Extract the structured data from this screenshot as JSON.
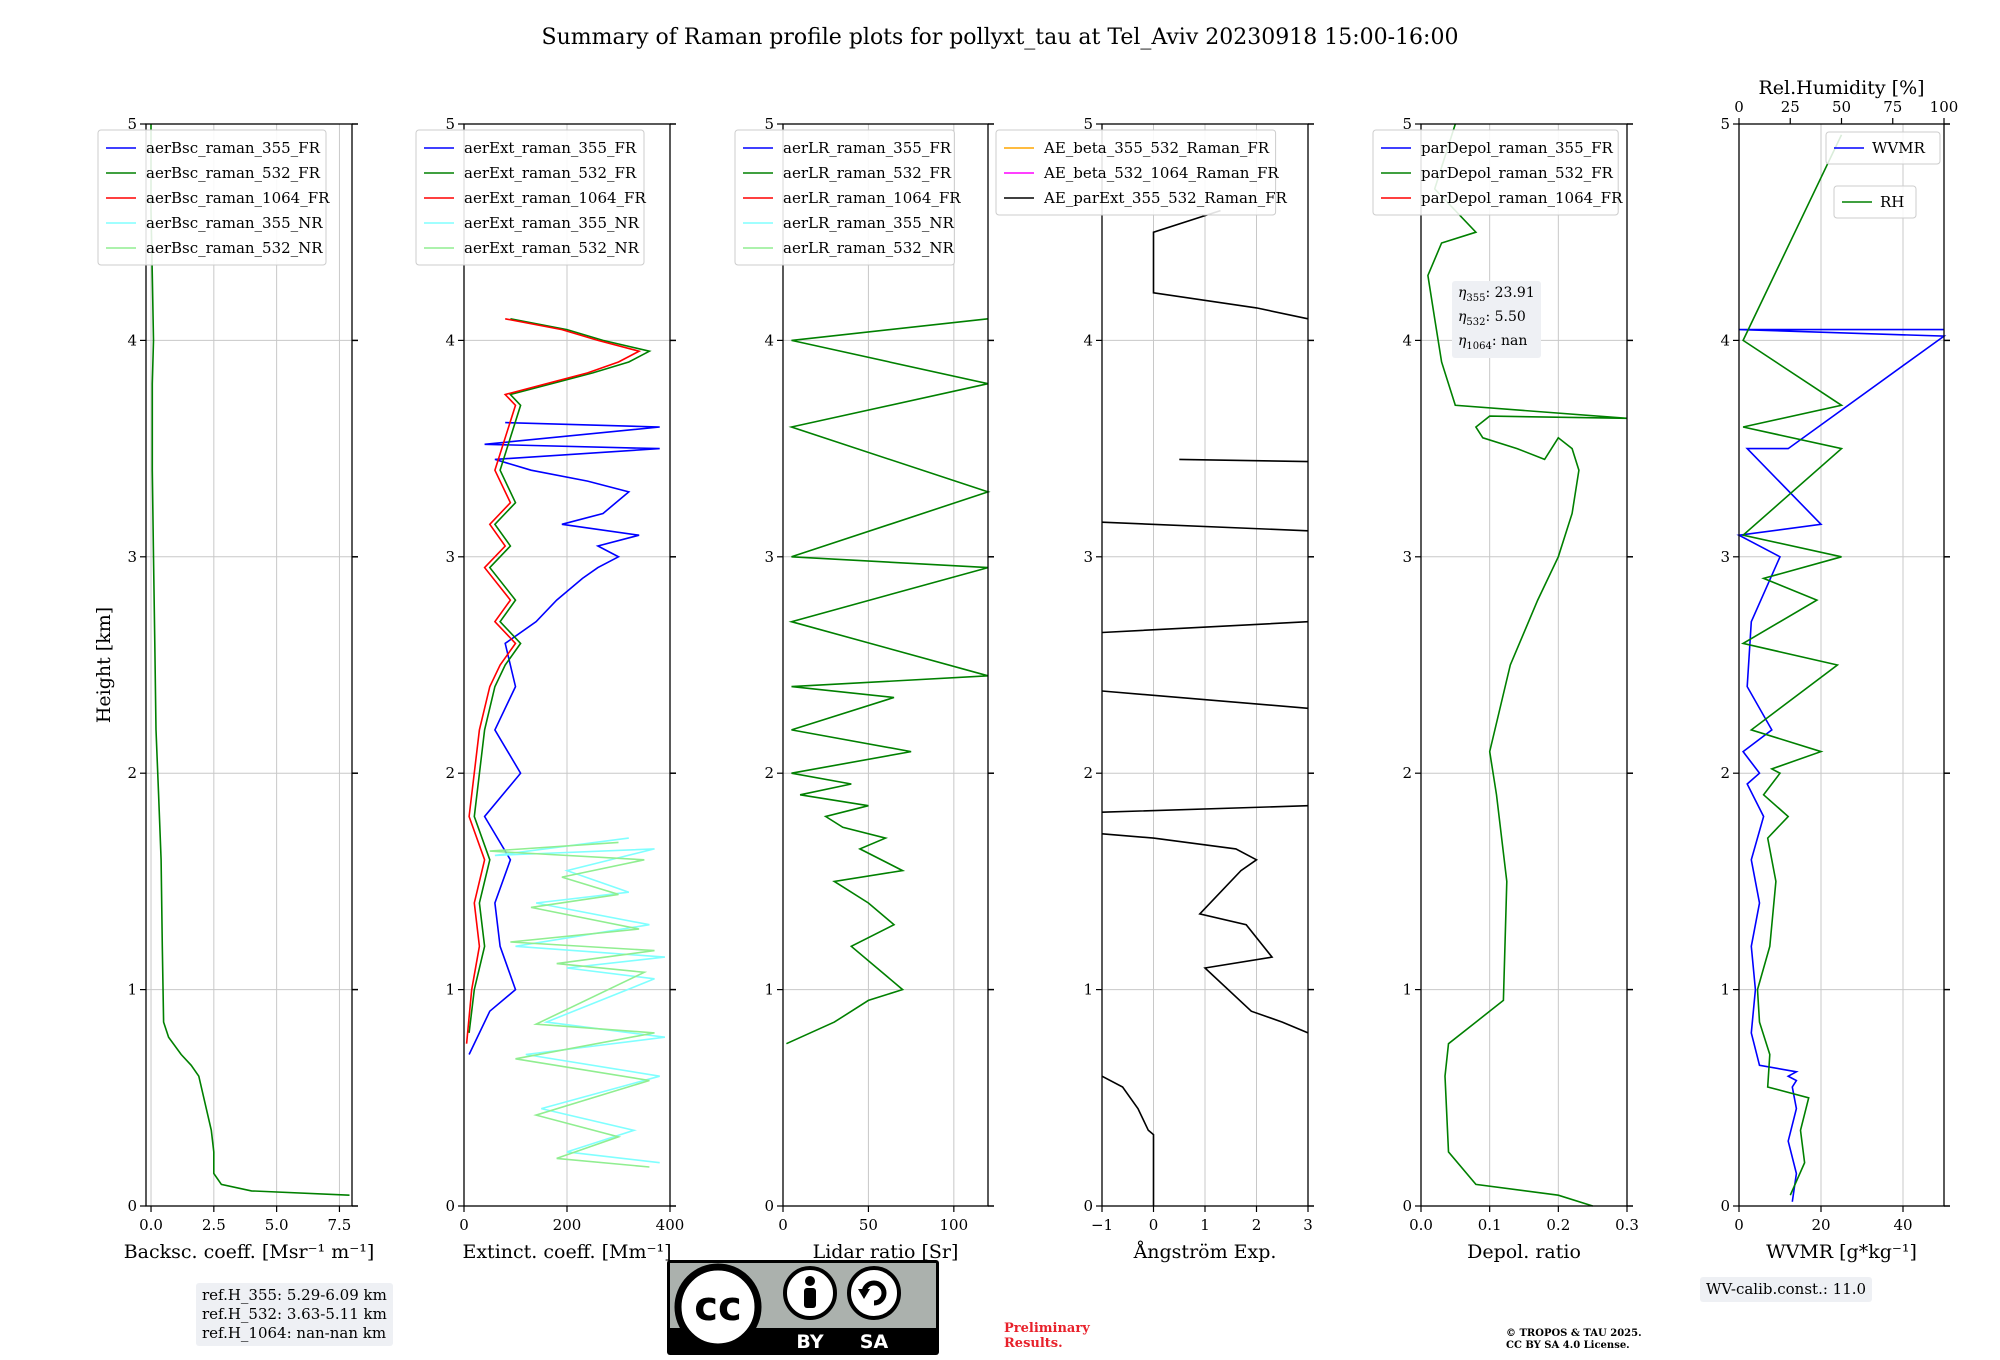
{
  "title": "Summary of Raman profile plots for pollyxt_tau at Tel_Aviv 20230918 15:00-16:00",
  "colors": {
    "blue": "#0000ff",
    "green": "#008000",
    "red": "#ff0000",
    "cyan": "#80ffff",
    "lightgreen": "#90ee90",
    "orange": "#ffa500",
    "magenta": "#ff00ff",
    "black": "#000000",
    "grid": "#c8c8c8"
  },
  "chart_data": [
    {
      "type": "line",
      "xlabel": "Backsc. coeff. [Msr⁻¹ m⁻¹]",
      "ylabel": "Height [km]",
      "xlim": [
        -0.2,
        8
      ],
      "ylim": [
        0,
        5
      ],
      "xticks": [
        "0.0",
        "2.5",
        "5.0",
        "7.5"
      ],
      "xtick_values": [
        0,
        2.5,
        5,
        7.5
      ],
      "yticks": [
        "0",
        "1",
        "2",
        "3",
        "4",
        "5"
      ],
      "grid": true,
      "legend_position": "top-left",
      "series": [
        {
          "name": "aerBsc_raman_355_FR",
          "color": "blue",
          "x": [],
          "y": []
        },
        {
          "name": "aerBsc_raman_532_FR",
          "color": "green",
          "x": [
            7.9,
            4.0,
            2.8,
            2.5,
            2.5,
            2.4,
            2.1,
            1.9,
            1.6,
            1.2,
            0.7,
            0.5,
            0.45,
            0.4,
            0.3,
            0.2,
            0.15,
            0.1,
            0.05,
            0.05,
            0.1,
            0.05,
            0.0,
            0.0
          ],
          "y": [
            0.05,
            0.07,
            0.1,
            0.15,
            0.25,
            0.35,
            0.5,
            0.6,
            0.65,
            0.7,
            0.78,
            0.85,
            1.2,
            1.6,
            1.9,
            2.2,
            2.6,
            3.0,
            3.4,
            3.8,
            4.0,
            4.3,
            4.6,
            5.0
          ]
        },
        {
          "name": "aerBsc_raman_1064_FR",
          "color": "red",
          "x": [],
          "y": []
        },
        {
          "name": "aerBsc_raman_355_NR",
          "color": "cyan",
          "x": [],
          "y": []
        },
        {
          "name": "aerBsc_raman_532_NR",
          "color": "lightgreen",
          "x": [],
          "y": []
        }
      ]
    },
    {
      "type": "line",
      "xlabel": "Extinct. coeff. [Mm⁻¹]",
      "xlim": [
        0,
        400
      ],
      "ylim": [
        0,
        5
      ],
      "xticks": [
        "0",
        "200",
        "400"
      ],
      "xtick_values": [
        0,
        200,
        400
      ],
      "yticks": [
        "0",
        "1",
        "2",
        "3",
        "4",
        "5"
      ],
      "grid": true,
      "legend_position": "top-left",
      "series": [
        {
          "name": "aerExt_raman_355_FR",
          "color": "blue",
          "x": [
            10,
            50,
            100,
            70,
            60,
            90,
            40,
            110,
            60,
            100,
            80,
            140,
            180,
            230,
            260,
            300,
            260,
            340,
            190,
            270,
            320,
            240,
            130,
            60,
            380,
            40,
            380,
            80
          ],
          "y": [
            0.7,
            0.9,
            1.0,
            1.2,
            1.4,
            1.6,
            1.8,
            2.0,
            2.2,
            2.4,
            2.6,
            2.7,
            2.8,
            2.9,
            2.95,
            3.0,
            3.05,
            3.1,
            3.15,
            3.2,
            3.3,
            3.35,
            3.4,
            3.45,
            3.5,
            3.52,
            3.6,
            3.62
          ]
        },
        {
          "name": "aerExt_raman_532_FR",
          "color": "green",
          "x": [
            10,
            20,
            40,
            30,
            50,
            20,
            40,
            60,
            80,
            110,
            70,
            100,
            50,
            90,
            60,
            100,
            70,
            110,
            90,
            250,
            320,
            360,
            270,
            200,
            90
          ],
          "y": [
            0.8,
            1.0,
            1.2,
            1.4,
            1.6,
            1.8,
            2.2,
            2.4,
            2.5,
            2.6,
            2.7,
            2.8,
            2.95,
            3.05,
            3.15,
            3.25,
            3.4,
            3.7,
            3.75,
            3.85,
            3.9,
            3.95,
            4.0,
            4.05,
            4.1
          ]
        },
        {
          "name": "aerExt_raman_1064_FR",
          "color": "red",
          "x": [
            5,
            15,
            30,
            20,
            40,
            10,
            30,
            50,
            70,
            100,
            60,
            90,
            40,
            80,
            50,
            90,
            60,
            100,
            80,
            240,
            300,
            340,
            260,
            190,
            80
          ],
          "y": [
            0.75,
            1.0,
            1.2,
            1.4,
            1.6,
            1.8,
            2.2,
            2.4,
            2.5,
            2.6,
            2.7,
            2.8,
            2.95,
            3.05,
            3.15,
            3.25,
            3.4,
            3.7,
            3.75,
            3.85,
            3.9,
            3.95,
            4.0,
            4.05,
            4.1
          ]
        },
        {
          "name": "aerExt_raman_355_NR",
          "color": "cyan",
          "x": [
            380,
            200,
            330,
            150,
            380,
            120,
            390,
            160,
            370,
            200,
            390,
            100,
            360,
            140,
            320,
            200,
            370,
            60,
            320
          ],
          "y": [
            0.2,
            0.25,
            0.35,
            0.45,
            0.6,
            0.7,
            0.78,
            0.85,
            1.05,
            1.1,
            1.15,
            1.2,
            1.3,
            1.4,
            1.45,
            1.55,
            1.65,
            1.62,
            1.7
          ]
        },
        {
          "name": "aerExt_raman_532_NR",
          "color": "lightgreen",
          "x": [
            360,
            180,
            300,
            140,
            360,
            100,
            370,
            140,
            350,
            180,
            370,
            90,
            340,
            130,
            300,
            190,
            350,
            50,
            300
          ],
          "y": [
            0.18,
            0.22,
            0.32,
            0.42,
            0.58,
            0.68,
            0.8,
            0.84,
            1.08,
            1.12,
            1.18,
            1.22,
            1.28,
            1.38,
            1.44,
            1.52,
            1.6,
            1.64,
            1.68
          ]
        }
      ]
    },
    {
      "type": "line",
      "xlabel": "Lidar ratio [Sr]",
      "xlim": [
        0,
        120
      ],
      "ylim": [
        0,
        5
      ],
      "xticks": [
        "0",
        "50",
        "100"
      ],
      "xtick_values": [
        0,
        50,
        100
      ],
      "yticks": [
        "0",
        "1",
        "2",
        "3",
        "4",
        "5"
      ],
      "grid": true,
      "legend_position": "top-left",
      "series": [
        {
          "name": "aerLR_raman_355_FR",
          "color": "blue",
          "x": [],
          "y": []
        },
        {
          "name": "aerLR_raman_532_FR",
          "color": "green",
          "x": [
            2,
            30,
            50,
            70,
            55,
            40,
            65,
            50,
            30,
            70,
            45,
            60,
            35,
            25,
            50,
            10,
            40,
            5,
            75,
            5,
            65,
            5,
            120,
            5,
            120,
            5,
            120,
            5,
            120,
            5,
            120
          ],
          "y": [
            0.75,
            0.85,
            0.95,
            1.0,
            1.1,
            1.2,
            1.3,
            1.4,
            1.5,
            1.55,
            1.65,
            1.7,
            1.75,
            1.8,
            1.85,
            1.9,
            1.95,
            2.0,
            2.1,
            2.2,
            2.35,
            2.4,
            2.45,
            2.7,
            2.95,
            3.0,
            3.3,
            3.6,
            3.8,
            4.0,
            4.1
          ]
        },
        {
          "name": "aerLR_raman_1064_FR",
          "color": "red",
          "x": [],
          "y": []
        },
        {
          "name": "aerLR_raman_355_NR",
          "color": "cyan",
          "x": [],
          "y": []
        },
        {
          "name": "aerLR_raman_532_NR",
          "color": "lightgreen",
          "x": [],
          "y": []
        }
      ]
    },
    {
      "type": "line",
      "xlabel": "Ångström Exp.",
      "xlim": [
        -1,
        3
      ],
      "ylim": [
        0,
        5
      ],
      "xticks": [
        "−1",
        "0",
        "1",
        "2",
        "3"
      ],
      "xtick_values": [
        -1,
        0,
        1,
        2,
        3
      ],
      "yticks": [
        "0",
        "1",
        "2",
        "3",
        "4",
        "5"
      ],
      "grid": true,
      "legend_position": "top-left",
      "series": [
        {
          "name": "AE_beta_355_532_Raman_FR",
          "color": "orange",
          "x": [],
          "y": []
        },
        {
          "name": "AE_beta_532_1064_Raman_FR",
          "color": "magenta",
          "x": [],
          "y": []
        },
        {
          "name": "AE_parExt_355_532_Raman_FR",
          "color": "black",
          "x": [
            0,
            0,
            -0.1,
            -0.3,
            -0.6,
            -1,
            null,
            3,
            2.5,
            1.9,
            1.0,
            2.3,
            1.8,
            0.9,
            1.7,
            2.0,
            1.6,
            0,
            -1,
            null,
            -1,
            3,
            null,
            -1,
            3,
            null,
            -1,
            3,
            null,
            -1,
            3,
            null,
            0.5,
            3,
            null,
            3,
            2,
            0,
            0,
            1.3
          ],
          "y": [
            0,
            0.33,
            0.35,
            0.45,
            0.55,
            0.6,
            null,
            0.8,
            0.85,
            0.9,
            1.1,
            1.15,
            1.3,
            1.35,
            1.55,
            1.6,
            1.65,
            1.7,
            1.72,
            null,
            1.82,
            1.85,
            null,
            2.38,
            2.3,
            null,
            2.65,
            2.7,
            null,
            3.16,
            3.12,
            null,
            3.45,
            3.44,
            null,
            4.1,
            4.15,
            4.22,
            4.5,
            4.6
          ]
        }
      ]
    },
    {
      "type": "line",
      "xlabel": "Depol. ratio",
      "xlim": [
        0,
        0.3
      ],
      "ylim": [
        0,
        5
      ],
      "xticks": [
        "0.0",
        "0.1",
        "0.2",
        "0.3"
      ],
      "xtick_values": [
        0,
        0.1,
        0.2,
        0.3
      ],
      "yticks": [
        "0",
        "1",
        "2",
        "3",
        "4",
        "5"
      ],
      "grid": true,
      "legend_position": "top-left",
      "series": [
        {
          "name": "parDepol_raman_355_FR",
          "color": "blue",
          "x": [],
          "y": []
        },
        {
          "name": "parDepol_raman_532_FR",
          "color": "green",
          "x": [
            0.25,
            0.2,
            0.08,
            0.04,
            0.035,
            0.04,
            0.08,
            0.12,
            0.125,
            0.11,
            0.1,
            0.1,
            0.13,
            0.17,
            0.2,
            0.22,
            0.23,
            0.22,
            0.2,
            0.18,
            0.14,
            0.09,
            0.08,
            0.1,
            0.3,
            0.05,
            0.03,
            0.02,
            0.01,
            0.03,
            0.08,
            0.02,
            0.05
          ],
          "y": [
            0.0,
            0.05,
            0.1,
            0.25,
            0.6,
            0.75,
            0.85,
            0.95,
            1.5,
            1.9,
            2.1,
            2.1,
            2.5,
            2.8,
            3.0,
            3.2,
            3.4,
            3.5,
            3.55,
            3.45,
            3.5,
            3.55,
            3.6,
            3.65,
            3.64,
            3.7,
            3.9,
            4.1,
            4.3,
            4.45,
            4.5,
            4.7,
            5.0
          ]
        },
        {
          "name": "parDepol_raman_1064_FR",
          "color": "red",
          "x": [],
          "y": []
        }
      ]
    },
    {
      "type": "line",
      "xlabel": "WVMR [g*kg⁻¹]",
      "x2label": "Rel.Humidity [%]",
      "xlim": [
        0,
        50
      ],
      "x2lim": [
        0,
        100
      ],
      "ylim": [
        0,
        5
      ],
      "xticks": [
        "0",
        "20",
        "40"
      ],
      "xtick_values": [
        0,
        20,
        40
      ],
      "x2ticks": [
        "0",
        "25",
        "50",
        "75",
        "100"
      ],
      "x2tick_values": [
        0,
        25,
        50,
        75,
        100
      ],
      "yticks": [
        "0",
        "1",
        "2",
        "3",
        "4",
        "5"
      ],
      "grid": true,
      "legend_position": "top-right",
      "series": [
        {
          "name": "WVMR",
          "color": "blue",
          "x": [
            13,
            14,
            12,
            14,
            13,
            14,
            12,
            14,
            5,
            3,
            4,
            3,
            5,
            3,
            6,
            2,
            5,
            1,
            8,
            2,
            3,
            10,
            0,
            20,
            2,
            12,
            50,
            0,
            50
          ],
          "y": [
            0.02,
            0.15,
            0.3,
            0.45,
            0.55,
            0.58,
            0.6,
            0.62,
            0.65,
            0.8,
            1.0,
            1.2,
            1.4,
            1.6,
            1.8,
            1.95,
            2.0,
            2.1,
            2.2,
            2.4,
            2.7,
            3.0,
            3.1,
            3.15,
            3.5,
            3.5,
            4.02,
            4.05,
            4.05
          ]
        },
        {
          "name": "RH",
          "color": "green",
          "x": [
            25,
            32,
            30,
            34,
            14,
            15,
            10,
            9,
            15,
            18,
            14,
            24,
            12,
            20,
            16,
            40,
            6,
            48,
            2,
            38,
            12,
            50,
            2,
            50,
            2,
            50,
            2,
            50
          ],
          "y": [
            0.05,
            0.2,
            0.35,
            0.5,
            0.55,
            0.7,
            0.85,
            1.0,
            1.2,
            1.5,
            1.7,
            1.8,
            1.9,
            2.0,
            2.02,
            2.1,
            2.2,
            2.5,
            2.6,
            2.8,
            2.9,
            3.0,
            3.1,
            3.5,
            3.6,
            3.7,
            4.0,
            4.95
          ]
        }
      ]
    }
  ],
  "annotations": {
    "ref_h_355": "ref.H_355: 5.29-6.09 km",
    "ref_h_532": "ref.H_532: 3.63-5.11 km",
    "ref_h_1064": "ref.H_1064: nan-nan km",
    "eta_355_label": "355",
    "eta_355_value": ": 23.91",
    "eta_532_label": "532",
    "eta_532_value": ": 5.50",
    "eta_1064_label": "1064",
    "eta_1064_value": ": nan",
    "wv_calib": "WV-calib.const.: 11.0",
    "preliminary_line1": "Preliminary",
    "preliminary_line2": "Results.",
    "copyright_line1": "© TROPOS & TAU 2025.",
    "copyright_line2": "CC BY SA 4.0 License.",
    "cc_badge_cc": "cc",
    "cc_badge_by": "BY",
    "cc_badge_sa": "SA"
  }
}
